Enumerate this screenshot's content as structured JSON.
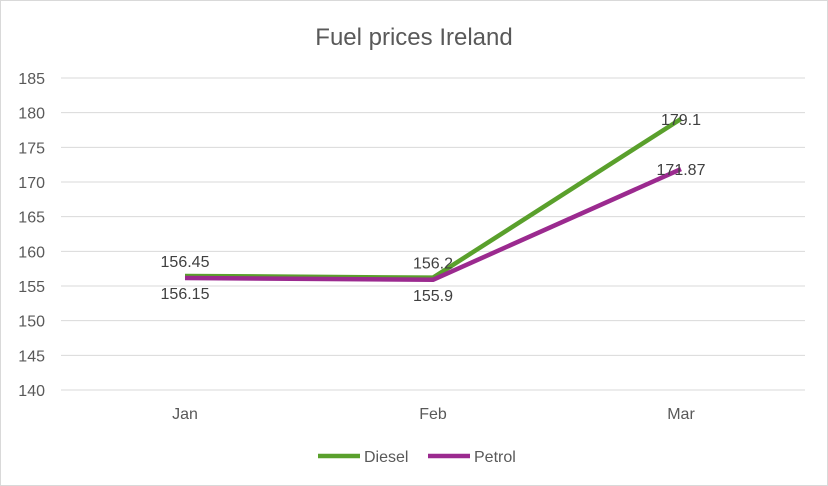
{
  "chart_data": {
    "type": "line",
    "title": "Fuel prices Ireland",
    "categories": [
      "Jan",
      "Feb",
      "Mar"
    ],
    "xlabel": "",
    "ylabel": "",
    "ylim": [
      140,
      185
    ],
    "yticks": [
      140,
      145,
      150,
      155,
      160,
      165,
      170,
      175,
      180,
      185
    ],
    "grid": true,
    "legend": "bottom",
    "series": [
      {
        "name": "Diesel",
        "values": [
          156.45,
          156.2,
          179.1
        ],
        "labels": [
          "156.45",
          "156.2",
          "179.1"
        ],
        "color": "#5aa02c"
      },
      {
        "name": "Petrol",
        "values": [
          156.15,
          155.9,
          171.87
        ],
        "labels": [
          "156.15",
          "155.9",
          "171.87"
        ],
        "color": "#9b2a8f"
      }
    ]
  }
}
